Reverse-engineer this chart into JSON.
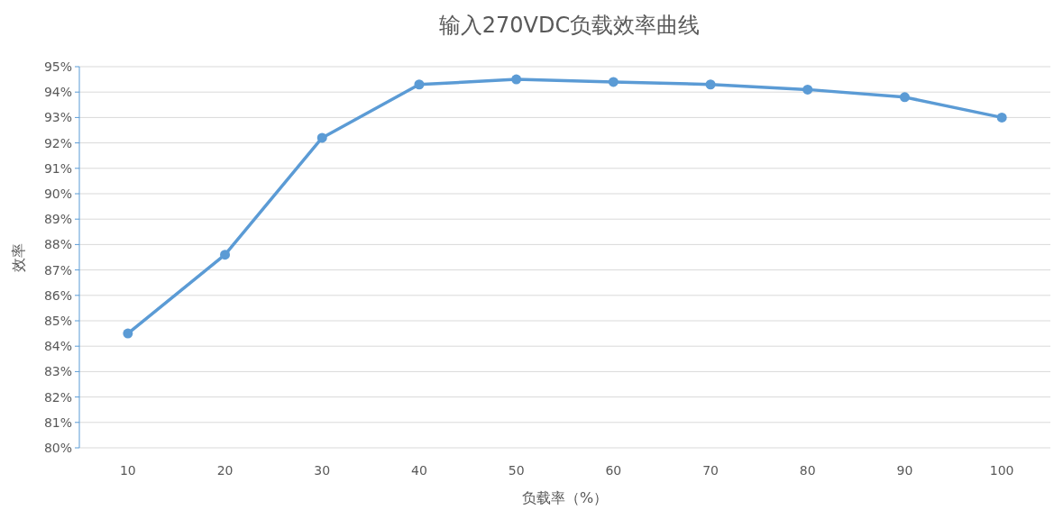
{
  "chart_data": {
    "type": "line",
    "title": "输入270VDC负载效率曲线",
    "xlabel": "负载率（%）",
    "ylabel": "效率",
    "categories": [
      "10",
      "20",
      "30",
      "40",
      "50",
      "60",
      "70",
      "80",
      "90",
      "100"
    ],
    "series": [
      {
        "color": "#5b9bd5",
        "values": [
          84.5,
          87.6,
          92.2,
          94.3,
          94.5,
          94.4,
          94.3,
          94.1,
          93.8,
          93.0
        ]
      }
    ],
    "ylim": [
      80,
      95
    ],
    "yticks": [
      {
        "value": 80,
        "label": "80%"
      },
      {
        "value": 81,
        "label": "81%"
      },
      {
        "value": 82,
        "label": "82%"
      },
      {
        "value": 83,
        "label": "83%"
      },
      {
        "value": 84,
        "label": "84%"
      },
      {
        "value": 85,
        "label": "85%"
      },
      {
        "value": 86,
        "label": "86%"
      },
      {
        "value": 87,
        "label": "87%"
      },
      {
        "value": 88,
        "label": "88%"
      },
      {
        "value": 89,
        "label": "89%"
      },
      {
        "value": 90,
        "label": "90%"
      },
      {
        "value": 91,
        "label": "91%"
      },
      {
        "value": 92,
        "label": "92%"
      },
      {
        "value": 93,
        "label": "93%"
      },
      {
        "value": 94,
        "label": "94%"
      },
      {
        "value": 95,
        "label": "95%"
      }
    ],
    "grid": "y",
    "marker": "circle"
  }
}
